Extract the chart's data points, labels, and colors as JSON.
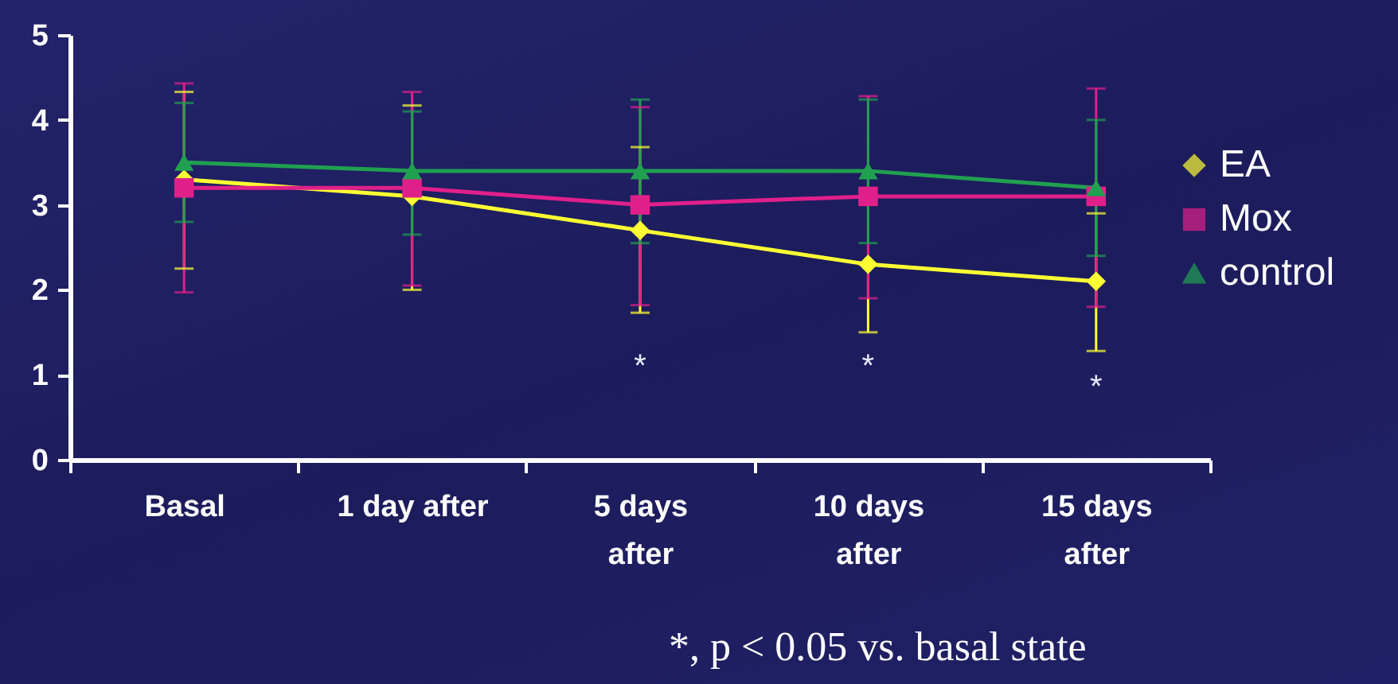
{
  "chart_data": {
    "type": "line",
    "categories": [
      "Basal",
      "1 day after",
      "5 days\nafter",
      "10 days\nafter",
      "15 days\nafter"
    ],
    "ylim": [
      0,
      5
    ],
    "yticks": [
      0,
      1,
      2,
      3,
      4,
      5
    ],
    "grid": false,
    "legend": "right",
    "series": [
      {
        "name": "EA",
        "color": "#ffff33",
        "marker": "diamond",
        "values": [
          3.3,
          3.1,
          2.7,
          2.3,
          2.1
        ],
        "errors": [
          [
            2.25,
            4.33
          ],
          [
            2.0,
            4.17
          ],
          [
            1.73,
            3.68
          ],
          [
            1.5,
            2.3
          ],
          [
            1.28,
            2.9
          ]
        ]
      },
      {
        "name": "Mox",
        "color": "#e0208a",
        "marker": "square",
        "values": [
          3.2,
          3.2,
          3.0,
          3.1,
          3.1
        ],
        "errors": [
          [
            1.97,
            4.43
          ],
          [
            2.05,
            4.33
          ],
          [
            1.82,
            4.15
          ],
          [
            1.9,
            4.28
          ],
          [
            1.8,
            4.37
          ]
        ]
      },
      {
        "name": "control",
        "color": "#20a050",
        "marker": "triangle",
        "values": [
          3.5,
          3.4,
          3.4,
          3.4,
          3.2
        ],
        "errors": [
          [
            2.8,
            4.2
          ],
          [
            2.65,
            4.1
          ],
          [
            2.55,
            4.24
          ],
          [
            2.55,
            4.24
          ],
          [
            2.4,
            4.0
          ]
        ]
      }
    ],
    "annotations": [
      "*",
      "*",
      "*",
      "*, p < 0.05 vs. basal state"
    ]
  }
}
